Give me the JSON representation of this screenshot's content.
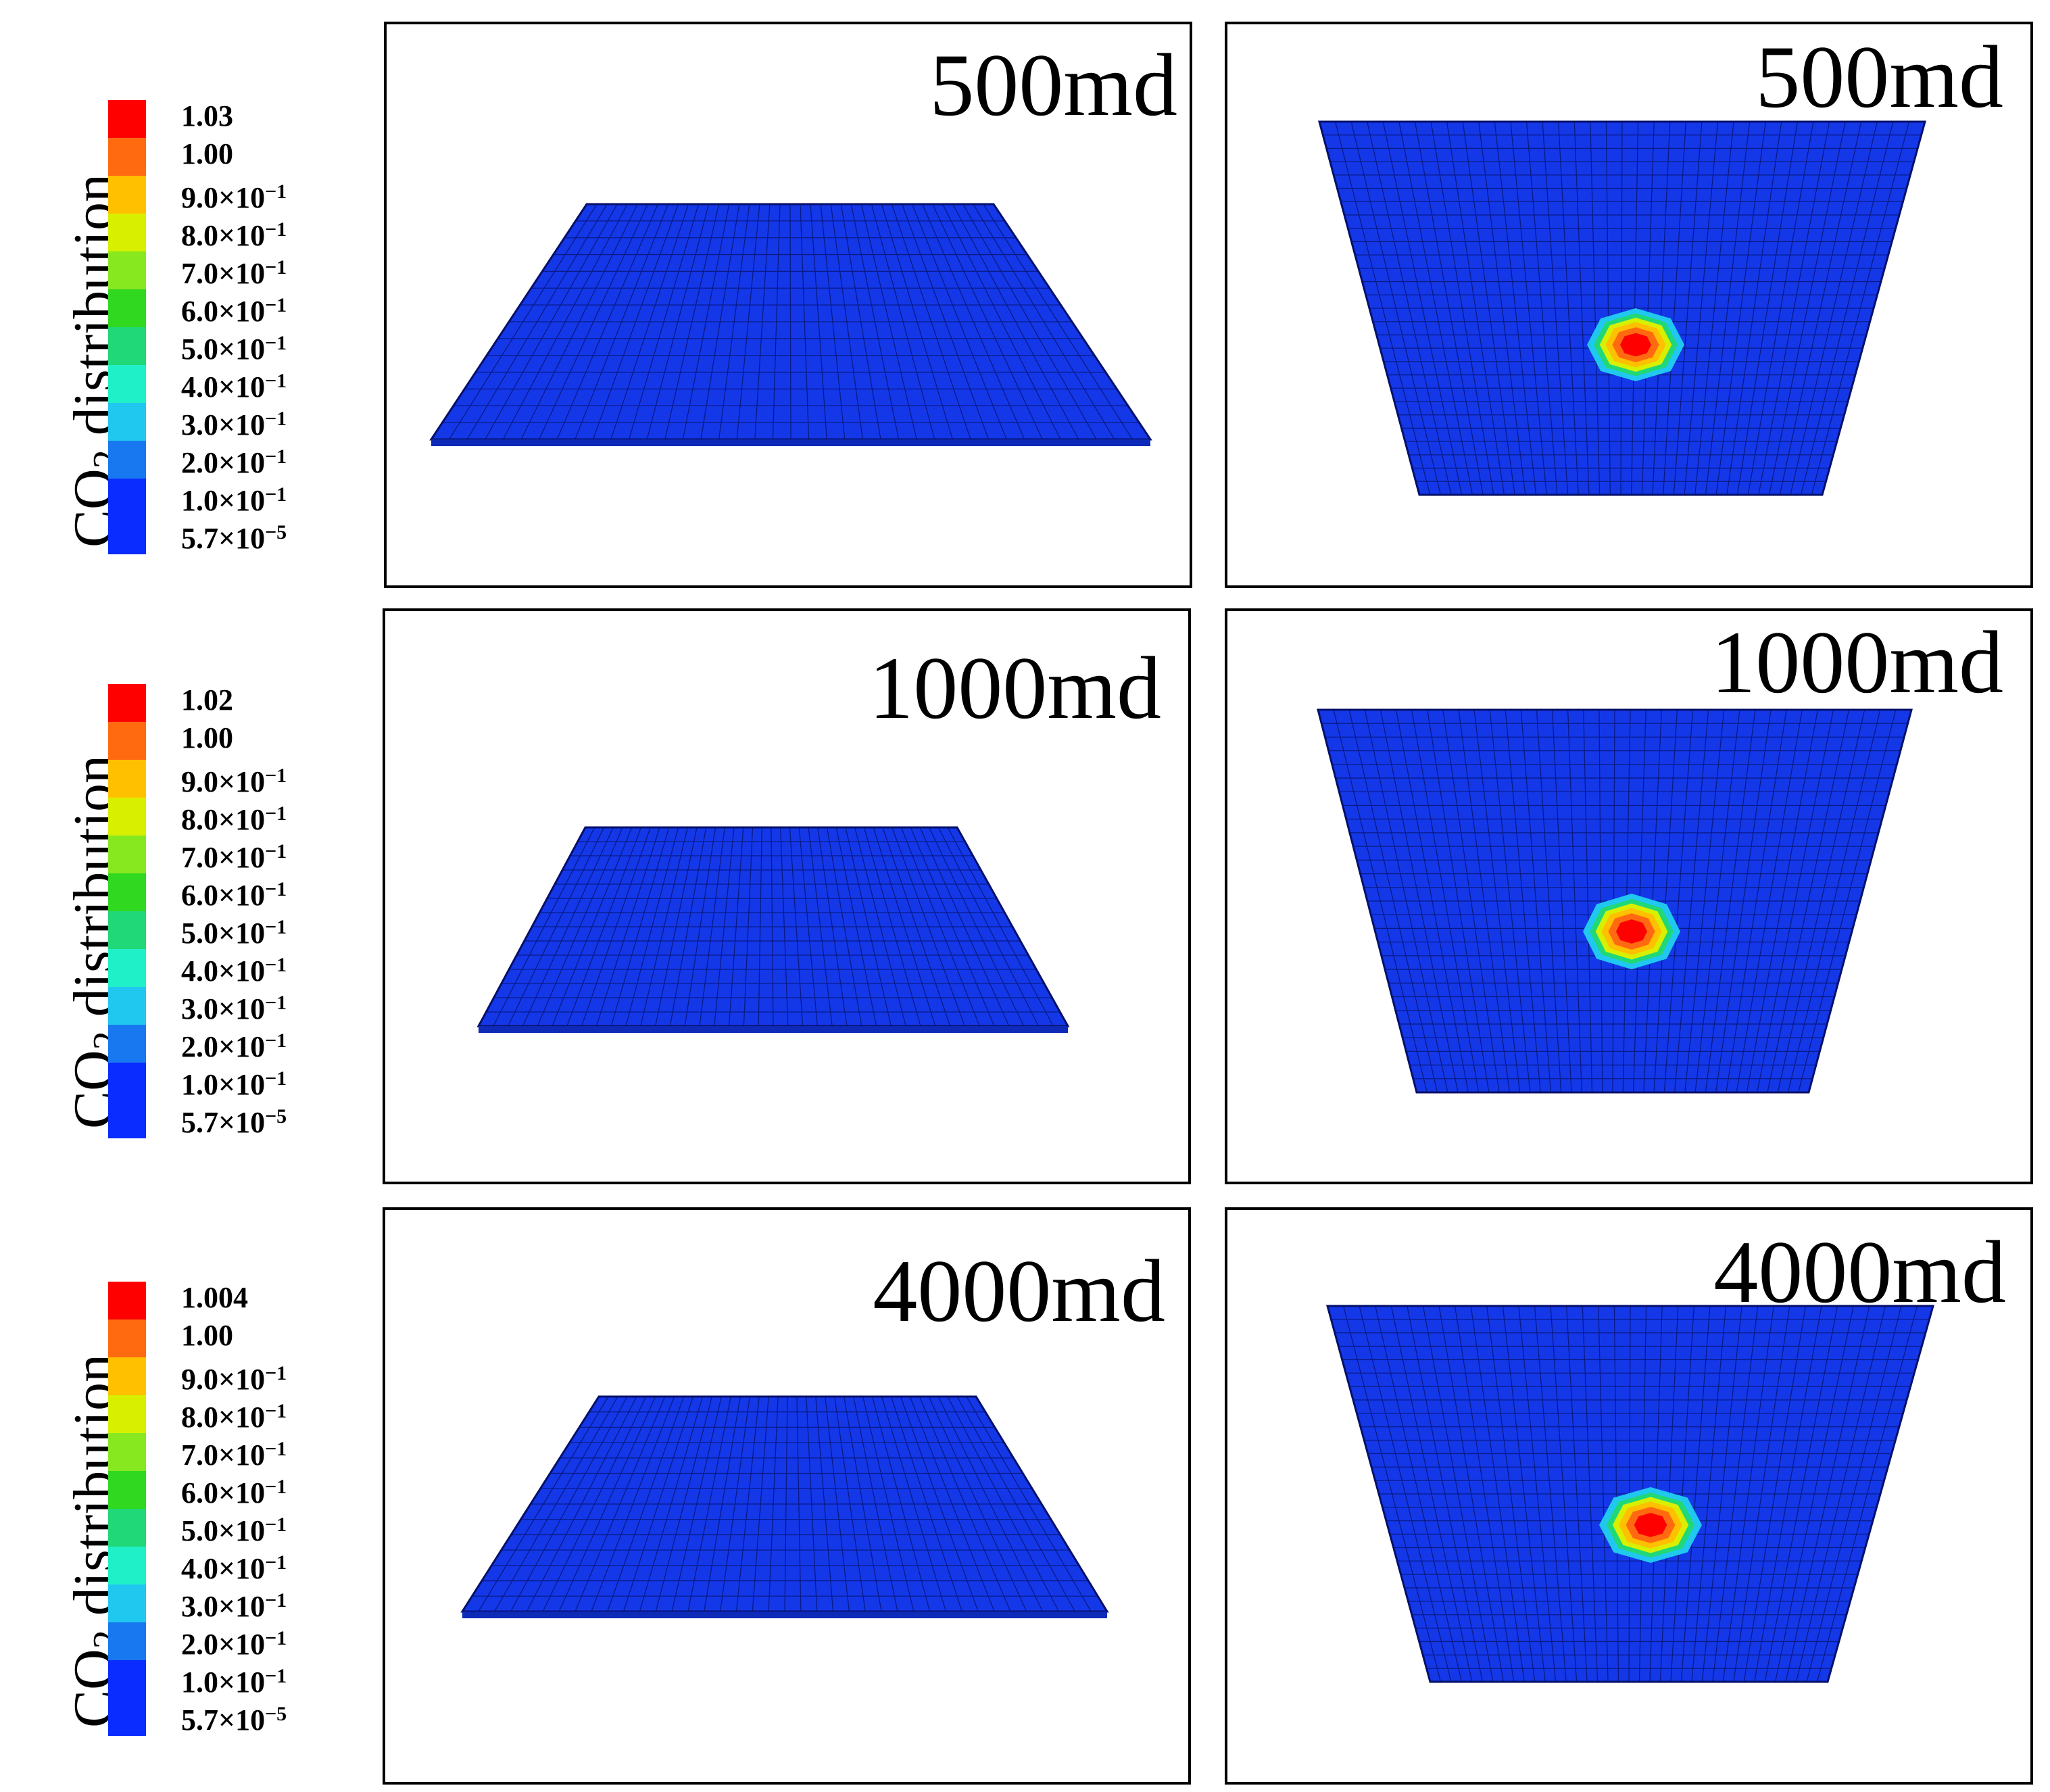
{
  "figure": {
    "rows": [
      {
        "legend": {
          "title_main": "CO",
          "title_sub": "2",
          "title_rest": " distribution",
          "ticks": [
            "1.03",
            "1.00",
            "9.0×10",
            "8.0×10",
            "7.0×10",
            "6.0×10",
            "5.0×10",
            "4.0×10",
            "3.0×10",
            "2.0×10",
            "1.0×10",
            "5.7×10"
          ],
          "exponents": [
            "",
            "",
            "−1",
            "−1",
            "−1",
            "−1",
            "−1",
            "−1",
            "−1",
            "−1",
            "−1",
            "−5"
          ]
        },
        "side_view": {
          "label": "500md"
        },
        "top_view": {
          "label": "500md"
        }
      },
      {
        "legend": {
          "title_main": "CO",
          "title_sub": "2",
          "title_rest": " distribution",
          "ticks": [
            "1.02",
            "1.00",
            "9.0×10",
            "8.0×10",
            "7.0×10",
            "6.0×10",
            "5.0×10",
            "4.0×10",
            "3.0×10",
            "2.0×10",
            "1.0×10",
            "5.7×10"
          ],
          "exponents": [
            "",
            "",
            "−1",
            "−1",
            "−1",
            "−1",
            "−1",
            "−1",
            "−1",
            "−1",
            "−1",
            "−5"
          ]
        },
        "side_view": {
          "label": "1000md"
        },
        "top_view": {
          "label": "1000md"
        }
      },
      {
        "legend": {
          "title_main": "CO",
          "title_sub": "2",
          "title_rest": " distribution",
          "ticks": [
            "1.004",
            "1.00",
            "9.0×10",
            "8.0×10",
            "7.0×10",
            "6.0×10",
            "5.0×10",
            "4.0×10",
            "3.0×10",
            "2.0×10",
            "1.0×10",
            "5.7×10"
          ],
          "exponents": [
            "",
            "",
            "−1",
            "−1",
            "−1",
            "−1",
            "−1",
            "−1",
            "−1",
            "−1",
            "−1",
            "−5"
          ]
        },
        "side_view": {
          "label": "4000md"
        },
        "top_view": {
          "label": "4000md"
        }
      }
    ],
    "colors": {
      "scale": [
        "#ff0000",
        "#ff6a10",
        "#ffc000",
        "#d8f000",
        "#88e820",
        "#30d820",
        "#20d878",
        "#20f0c8",
        "#20c8f0",
        "#1878f0",
        "#0a2cff",
        "#0a2cff"
      ],
      "grid_fill": "#1438e8",
      "grid_line": "#05106a"
    }
  }
}
